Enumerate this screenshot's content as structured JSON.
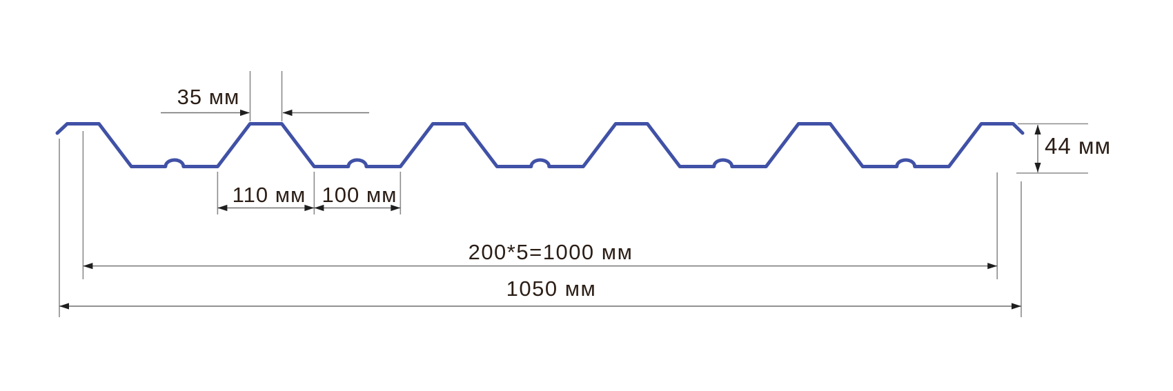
{
  "diagram": {
    "type": "profiled-sheet-cross-section",
    "labels": {
      "rib_top_width": "35 мм",
      "rib_base_width": "110 мм",
      "valley_width": "100 мм",
      "module_width": "200*5=1000 мм",
      "total_width": "1050 мм",
      "profile_height": "44 мм"
    },
    "dimensions_mm": {
      "rib_top_width": 35,
      "rib_base_width": 110,
      "valley_width": 100,
      "module_pitch": 200,
      "module_count": 5,
      "module_total": 1000,
      "total_width": 1050,
      "profile_height": 44
    },
    "colors": {
      "profile": "#4051a6",
      "dimension_line": "#6f6f6f",
      "extension_line": "#8c8c8c",
      "arrow": "#1f1f1f",
      "text": "#2b1e16",
      "background": "#ffffff"
    }
  }
}
